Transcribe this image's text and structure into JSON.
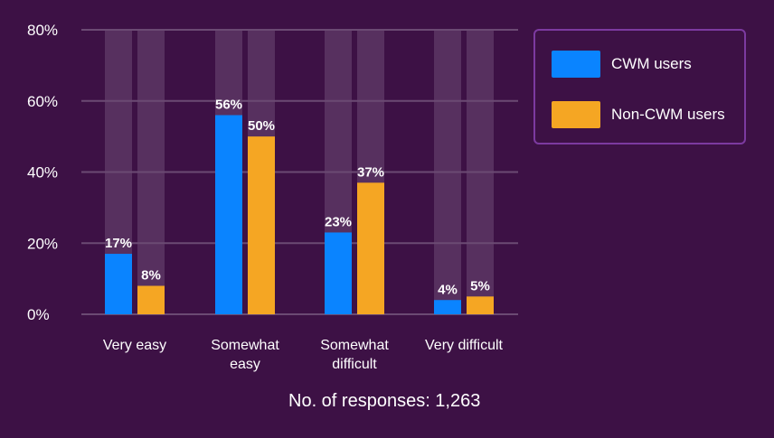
{
  "chart_data": {
    "type": "bar",
    "categories": [
      "Very easy",
      "Somewhat easy",
      "Somewhat difficult",
      "Very difficult"
    ],
    "category_lines": [
      [
        "Very easy"
      ],
      [
        "Somewhat",
        "easy"
      ],
      [
        "Somewhat",
        "difficult"
      ],
      [
        "Very difficult"
      ]
    ],
    "series": [
      {
        "name": "CWM users",
        "values": [
          17,
          56,
          23,
          4
        ],
        "labels": [
          "17%",
          "56%",
          "23%",
          "4%"
        ],
        "color": "#0a84ff"
      },
      {
        "name": "Non-CWM users",
        "values": [
          8,
          50,
          37,
          5
        ],
        "labels": [
          "8%",
          "50%",
          "37%",
          "5%"
        ],
        "color": "#f5a623"
      }
    ],
    "ylim": [
      0,
      80
    ],
    "yticks": [
      0,
      20,
      40,
      60,
      80
    ],
    "ytick_labels": [
      "0%",
      "20%",
      "40%",
      "60%",
      "80%"
    ],
    "grid": true,
    "legend_position": "top-right",
    "footnote": "No. of responses: 1,263"
  },
  "colors": {
    "background": "#3d1145",
    "grid": "#6b4a73",
    "track": "#57305f",
    "legend_border": "#7c3aa0"
  }
}
